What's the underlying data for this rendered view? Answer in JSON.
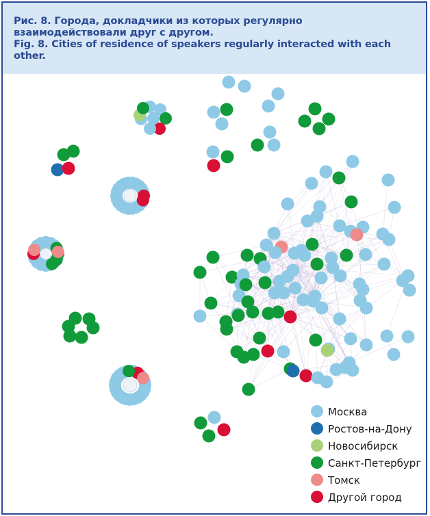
{
  "caption": {
    "ru": "Рис. 8. Города, докладчики из которых регулярно взаимодействовали друг с другом.",
    "en": "Fig. 8. Cities of residence of speakers regularly interacted with each other."
  },
  "legend": [
    {
      "label": "Москва",
      "color": "#8ecae6"
    },
    {
      "label": "Ростов-на-Дону",
      "color": "#1f6fae"
    },
    {
      "label": "Новосибирск",
      "color": "#a8d27a"
    },
    {
      "label": "Санкт-Петербург",
      "color": "#119a3a"
    },
    {
      "label": "Томск",
      "color": "#ef8a8a"
    },
    {
      "label": "Другой город",
      "color": "#d90f35"
    }
  ]
}
